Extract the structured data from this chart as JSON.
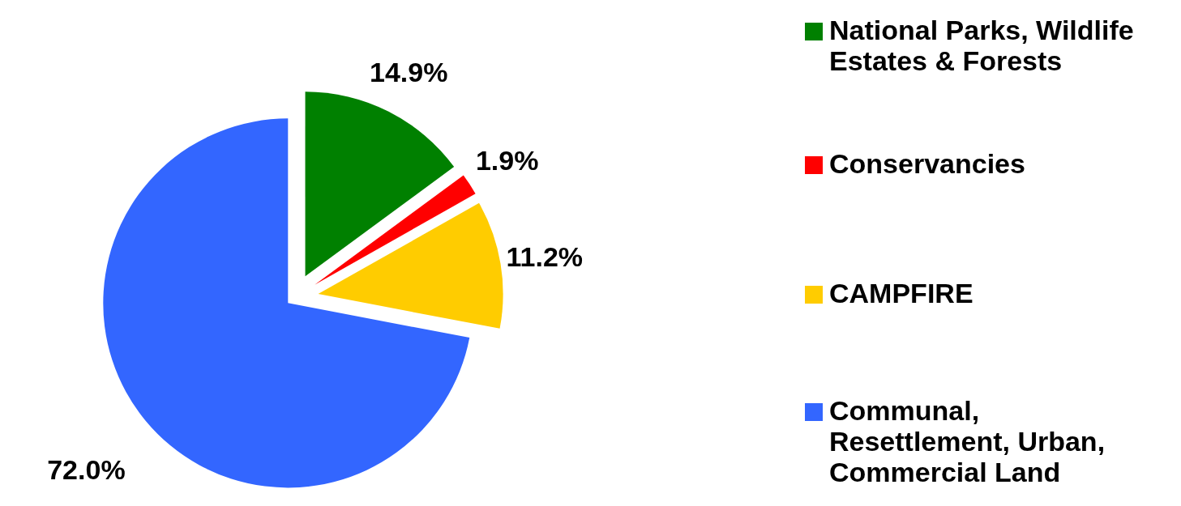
{
  "chart_data": {
    "type": "pie",
    "categories": [
      "National Parks, Wildlife Estates & Forests",
      "Conservancies",
      "CAMPFIRE",
      "Communal, Resettlement, Urban, Commercial Land"
    ],
    "values": [
      14.9,
      1.9,
      11.2,
      72.0
    ],
    "colors": [
      "#008000",
      "#ff0000",
      "#ffcc00",
      "#3366ff"
    ],
    "value_labels": [
      "14.9%",
      "1.9%",
      "11.2%",
      "72.0%"
    ],
    "legend": "right"
  }
}
